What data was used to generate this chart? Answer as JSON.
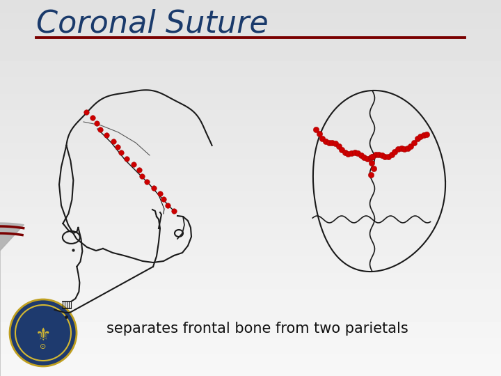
{
  "title": "Coronal Suture",
  "title_color": "#1a3a6b",
  "title_fontsize": 32,
  "subtitle_text": "separates frontal bone from two parietals",
  "subtitle_fontsize": 15,
  "bg_color_top": "#d8d8d8",
  "bg_color_main": "#f0f0f0",
  "bg_color_white": "#ffffff",
  "line_color": "#8b0000",
  "separator_color": "#7a0000",
  "red_suture_color": "#cc0000",
  "black_line_color": "#1a1a1a",
  "badge_blue": "#1e3a6e",
  "badge_gold": "#c8a030"
}
